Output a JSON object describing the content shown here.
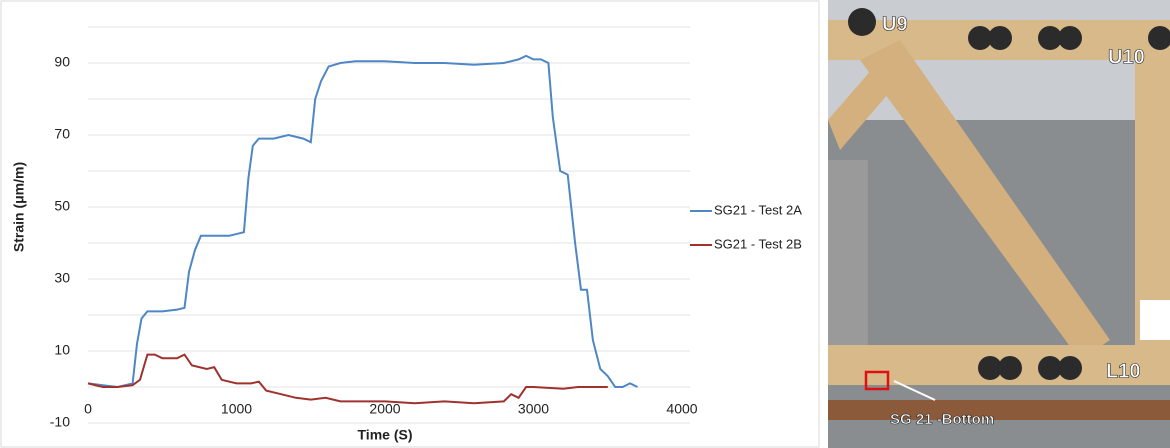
{
  "chart_data": {
    "type": "line",
    "x_label": "Time (S)",
    "y_label": "Strain (μm/m)",
    "xlim": [
      0,
      4000
    ],
    "xticks": [
      0,
      1000,
      2000,
      3000,
      4000
    ],
    "ylim": [
      -10,
      100
    ],
    "yticks": [
      -10,
      10,
      30,
      50,
      70,
      90
    ],
    "minor_yticks": [
      0,
      20,
      40,
      60,
      80,
      100
    ],
    "grid": true,
    "legend": "right",
    "series": [
      {
        "name": "SG21 - Test 2A",
        "color": "#4f86c6",
        "x": [
          0,
          100,
          200,
          300,
          330,
          360,
          400,
          500,
          600,
          650,
          680,
          720,
          760,
          850,
          950,
          1050,
          1080,
          1110,
          1150,
          1250,
          1350,
          1450,
          1500,
          1530,
          1570,
          1620,
          1700,
          1800,
          2000,
          2200,
          2400,
          2600,
          2800,
          2900,
          2950,
          3000,
          3050,
          3100,
          3130,
          3180,
          3230,
          3280,
          3320,
          3360,
          3400,
          3450,
          3500,
          3550,
          3600,
          3650,
          3700
        ],
        "values": [
          1,
          0.5,
          0,
          1,
          12,
          19,
          21,
          21,
          21.5,
          22,
          32,
          38,
          42,
          42,
          42,
          43,
          58,
          67,
          69,
          69,
          70,
          69,
          68,
          80,
          85,
          89,
          90,
          90.5,
          90.5,
          90,
          90,
          89.5,
          90,
          91,
          92,
          91,
          91,
          90,
          75,
          60,
          59,
          40,
          27,
          27,
          13,
          5,
          3,
          0,
          0,
          1,
          0
        ]
      },
      {
        "name": "SG21 - Test 2B",
        "color": "#a0322e",
        "x": [
          0,
          100,
          200,
          300,
          350,
          400,
          450,
          500,
          600,
          650,
          700,
          800,
          850,
          900,
          1000,
          1100,
          1150,
          1200,
          1300,
          1400,
          1500,
          1600,
          1700,
          1800,
          2000,
          2200,
          2400,
          2600,
          2800,
          2850,
          2900,
          2950,
          3000,
          3200,
          3300,
          3400,
          3500
        ],
        "values": [
          1,
          0,
          0,
          0.5,
          2,
          9,
          9,
          8,
          8,
          9,
          6,
          5,
          5.5,
          2,
          1,
          1,
          1.5,
          -1,
          -2,
          -3,
          -3.5,
          -3,
          -4,
          -4,
          -4,
          -4.5,
          -4,
          -4.5,
          -4,
          -2,
          -3,
          0,
          0,
          -0.5,
          0,
          0,
          0
        ]
      }
    ]
  },
  "photo": {
    "labels": [
      "U9",
      "U10",
      "L10",
      "SG 21 -Bottom"
    ]
  }
}
